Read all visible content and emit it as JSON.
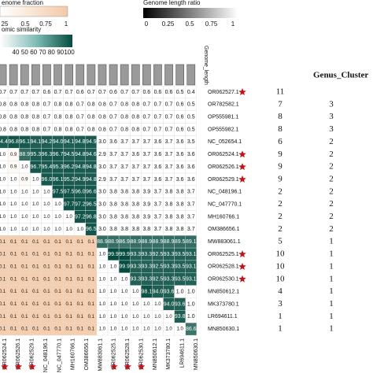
{
  "legends": {
    "genome_fraction": {
      "title": "enome fraction",
      "ticks": [
        "25",
        "0.5",
        "0.75",
        "1"
      ]
    },
    "genome_length_ratio": {
      "title": "Genome length ratio",
      "ticks": [
        "0",
        "0.25",
        "0.5",
        "0.75",
        "1"
      ]
    },
    "similarity": {
      "title": "omic similarity",
      "ticks": [
        "40",
        "50",
        "60",
        "70",
        "80",
        "90",
        "100"
      ]
    }
  },
  "bar_label": "Genome_length",
  "genus_header": "Genus_Cluster",
  "rows": [
    {
      "name": "OR062527.1",
      "starred": true,
      "fractions": [],
      "similarities": [],
      "ratios": [
        "0.7",
        "0.7",
        "0.7",
        "0.7",
        "0.6",
        "0.7",
        "0.7",
        "0.6",
        "0.7",
        "0.7",
        "0.6",
        "0.7",
        "0.7",
        "0.6",
        "0.6",
        "0.6",
        "0.5",
        "0.4"
      ],
      "count": "11",
      "genus": null
    },
    {
      "name": "OR782582.1",
      "starred": false,
      "fractions": [],
      "similarities": [],
      "ratios": [
        "0.8",
        "0.8",
        "0.8",
        "0.8",
        "0.7",
        "0.8",
        "0.8",
        "0.7",
        "0.8",
        "0.8",
        "0.7",
        "0.8",
        "0.8",
        "0.7",
        "0.7",
        "0.7",
        "0.6",
        "0.5"
      ],
      "count": "7",
      "genus": "3"
    },
    {
      "name": "OP555981.1",
      "starred": false,
      "fractions": [],
      "similarities": [],
      "ratios": [
        "0.8",
        "0.8",
        "0.8",
        "0.8",
        "0.7",
        "0.8",
        "0.8",
        "0.7",
        "0.8",
        "0.8",
        "0.7",
        "0.8",
        "0.8",
        "0.7",
        "0.7",
        "0.7",
        "0.6",
        "0.5"
      ],
      "count": "8",
      "genus": "3"
    },
    {
      "name": "OP555982.1",
      "starred": false,
      "fractions": [],
      "similarities": [],
      "ratios": [
        "0.8",
        "0.8",
        "0.8",
        "0.8",
        "0.7",
        "0.8",
        "0.8",
        "0.7",
        "0.8",
        "0.8",
        "0.7",
        "0.8",
        "0.8",
        "0.7",
        "0.7",
        "0.7",
        "0.6",
        "0.5"
      ],
      "count": "8",
      "genus": "3"
    },
    {
      "name": "NC_052654.1",
      "starred": false,
      "fractions": [],
      "similarities": [
        "94.4",
        "96.8",
        "96.1",
        "94.1",
        "94.2",
        "94.0",
        "94.1",
        "94.8",
        "94.9"
      ],
      "ratios": [
        "3.0",
        "3.6",
        "3.7",
        "3.7",
        "3.7",
        "3.6",
        "3.7",
        "3.6",
        "3.5"
      ],
      "count": "6",
      "genus": "2"
    },
    {
      "name": "OR062524.1",
      "starred": true,
      "fractions": [
        "1.0",
        "0.9"
      ],
      "similarities": [
        "88.9",
        "95.3",
        "96.3",
        "96.7",
        "94.5",
        "94.8",
        "94.6"
      ],
      "ratios": [
        "2.9",
        "3.7",
        "3.7",
        "3.6",
        "3.7",
        "3.6",
        "3.7",
        "3.6",
        "3.6"
      ],
      "count": "9",
      "genus": "2"
    },
    {
      "name": "OR062526.1",
      "starred": true,
      "fractions": [
        "1.0",
        "0.9",
        "1.0"
      ],
      "similarities": [
        "96.7",
        "95.4",
        "95.3",
        "96.2",
        "94.8",
        "94.8"
      ],
      "ratios": [
        "3.0",
        "3.7",
        "3.7",
        "3.7",
        "3.7",
        "3.6",
        "3.7",
        "3.6",
        "3.6"
      ],
      "count": "9",
      "genus": "2"
    },
    {
      "name": "OR062529.1",
      "starred": true,
      "fractions": [
        "1.0",
        "1.0",
        "0.9",
        "1.0"
      ],
      "similarities": [
        "96.0",
        "96.1",
        "95.2",
        "94.9",
        "94.8"
      ],
      "ratios": [
        "2.9",
        "3.7",
        "3.7",
        "3.7",
        "3.7",
        "3.6",
        "3.7",
        "3.6",
        "3.6"
      ],
      "count": "9",
      "genus": "2"
    },
    {
      "name": "NC_048196.1",
      "starred": false,
      "fractions": [
        "1.0",
        "1.0",
        "1.0",
        "1.0",
        "1.0"
      ],
      "similarities": [
        "97.5",
        "97.5",
        "96.0",
        "96.6"
      ],
      "ratios": [
        "3.0",
        "3.8",
        "3.8",
        "3.8",
        "3.9",
        "3.7",
        "3.8",
        "3.8",
        "3.7"
      ],
      "count": "2",
      "genus": "2"
    },
    {
      "name": "NC_047770.1",
      "starred": false,
      "fractions": [
        "1.0",
        "1.0",
        "1.0",
        "1.0",
        "1.0",
        "1.0"
      ],
      "similarities": [
        "97.7",
        "97.2",
        "96.5"
      ],
      "ratios": [
        "3.0",
        "3.8",
        "3.8",
        "3.8",
        "3.9",
        "3.7",
        "3.8",
        "3.8",
        "3.7"
      ],
      "count": "2",
      "genus": "2"
    },
    {
      "name": "MH160766.1",
      "starred": false,
      "fractions": [
        "1.0",
        "1.0",
        "1.0",
        "1.0",
        "1.0",
        "1.0",
        "1.0"
      ],
      "similarities": [
        "97.2",
        "96.8"
      ],
      "ratios": [
        "3.0",
        "3.8",
        "3.8",
        "3.8",
        "3.9",
        "3.7",
        "3.8",
        "3.8",
        "3.7"
      ],
      "count": "2",
      "genus": "2"
    },
    {
      "name": "OM386656.1",
      "starred": false,
      "fractions": [
        "1.0",
        "1.0",
        "1.0",
        "1.0",
        "1.0",
        "1.0",
        "1.0",
        "1.0"
      ],
      "similarities": [
        "96.5"
      ],
      "ratios": [
        "3.0",
        "3.8",
        "3.8",
        "3.8",
        "3.8",
        "3.7",
        "3.8",
        "3.8",
        "3.7"
      ],
      "count": "2",
      "genus": "2"
    },
    {
      "name": "MW883061.1",
      "starred": false,
      "fractions": [
        "0.1",
        "0.1",
        "0.1",
        "0.1",
        "0.1",
        "0.1",
        "0.1",
        "0.1",
        "0.1"
      ],
      "similarities": [
        "88.9",
        "88.9",
        "86.9",
        "88.9",
        "88.9",
        "88.9",
        "88.9",
        "89.5",
        "89.1"
      ],
      "ratios": [],
      "count": "5",
      "genus": "1"
    },
    {
      "name": "OR062525.1",
      "starred": true,
      "fractions": [
        "0.1",
        "0.1",
        "0.1",
        "0.1",
        "0.1",
        "0.1",
        "0.1",
        "0.1",
        "0.1",
        "1.0"
      ],
      "similarities": [
        "99.9",
        "99.9",
        "93.3",
        "93.3",
        "92.5",
        "93.3",
        "93.5",
        "93.1"
      ],
      "ratios": [],
      "count": "10",
      "genus": "1"
    },
    {
      "name": "OR062528.1",
      "starred": true,
      "fractions": [
        "0.1",
        "0.1",
        "0.1",
        "0.1",
        "0.1",
        "0.1",
        "0.1",
        "0.1",
        "0.1",
        "1.0",
        "1.0"
      ],
      "similarities": [
        "99.9",
        "93.3",
        "93.3",
        "92.5",
        "93.3",
        "93.5",
        "93.1"
      ],
      "ratios": [],
      "count": "10",
      "genus": "1"
    },
    {
      "name": "OR062530.1",
      "starred": true,
      "fractions": [
        "0.1",
        "0.1",
        "0.1",
        "0.1",
        "0.1",
        "0.1",
        "0.1",
        "0.1",
        "0.1",
        "1.0",
        "1.0",
        "1.0"
      ],
      "similarities": [
        "93.3",
        "93.3",
        "92.5",
        "93.3",
        "93.5",
        "93.1"
      ],
      "ratios": [],
      "count": "10",
      "genus": "1"
    },
    {
      "name": "MN850612.1",
      "starred": false,
      "fractions": [
        "0.1",
        "0.1",
        "0.1",
        "0.1",
        "0.1",
        "0.1",
        "0.1",
        "0.1",
        "0.1",
        "1.0",
        "1.0",
        "1.0",
        "1.0"
      ],
      "similarities": [
        "98.1",
        "94.0",
        "93.6"
      ],
      "ratios": [
        "1.0",
        "1.0"
      ],
      "count": "4",
      "genus": "1"
    },
    {
      "name": "MK373780.1",
      "starred": false,
      "fractions": [
        "0.1",
        "0.1",
        "0.1",
        "0.1",
        "0.1",
        "0.1",
        "0.1",
        "0.1",
        "0.1",
        "1.0",
        "1.0",
        "1.0",
        "1.0",
        "1.0",
        "1.0"
      ],
      "similarities": [
        "94.0",
        "93.6"
      ],
      "ratios": [
        "1.0"
      ],
      "count": "3",
      "genus": "1"
    },
    {
      "name": "LR694611.1",
      "starred": false,
      "fractions": [
        "0.1",
        "0.1",
        "0.1",
        "0.1",
        "0.1",
        "0.1",
        "0.1",
        "0.1",
        "0.1",
        "1.0",
        "1.0",
        "1.0",
        "1.0",
        "1.0",
        "1.0",
        "1.0"
      ],
      "similarities": [
        "93.8"
      ],
      "ratios": [
        "1.0"
      ],
      "count": "1",
      "genus": "1"
    },
    {
      "name": "MN850630.1",
      "starred": false,
      "fractions": [
        "0.1",
        "0.1",
        "0.1",
        "0.1",
        "0.1",
        "0.1",
        "0.1",
        "0.1",
        "0.1",
        "1.0",
        "1.0",
        "1.0",
        "1.0",
        "1.0",
        "1.0",
        "1.0",
        "1.0"
      ],
      "similarities": [
        "86.6"
      ],
      "ratios": [],
      "count": "1",
      "genus": "1"
    }
  ],
  "columns": [
    {
      "name": "OR062524.1",
      "starred": true
    },
    {
      "name": "OR062526.1",
      "starred": true
    },
    {
      "name": "OR062529.1",
      "starred": true
    },
    {
      "name": "NC_048196.1",
      "starred": false
    },
    {
      "name": "NC_047770.1",
      "starred": false
    },
    {
      "name": "MH160766.1",
      "starred": false
    },
    {
      "name": "OM386656.1",
      "starred": false
    },
    {
      "name": "MW883061.1",
      "starred": false
    },
    {
      "name": "OR062525.1",
      "starred": true
    },
    {
      "name": "OR062528.1",
      "starred": true
    },
    {
      "name": "OR062530.1",
      "starred": true
    },
    {
      "name": "MN850612.1",
      "starred": false
    },
    {
      "name": "MK373780.1",
      "starred": false
    },
    {
      "name": "LR694611.1",
      "starred": false
    },
    {
      "name": "MN850630.1",
      "starred": false
    }
  ]
}
